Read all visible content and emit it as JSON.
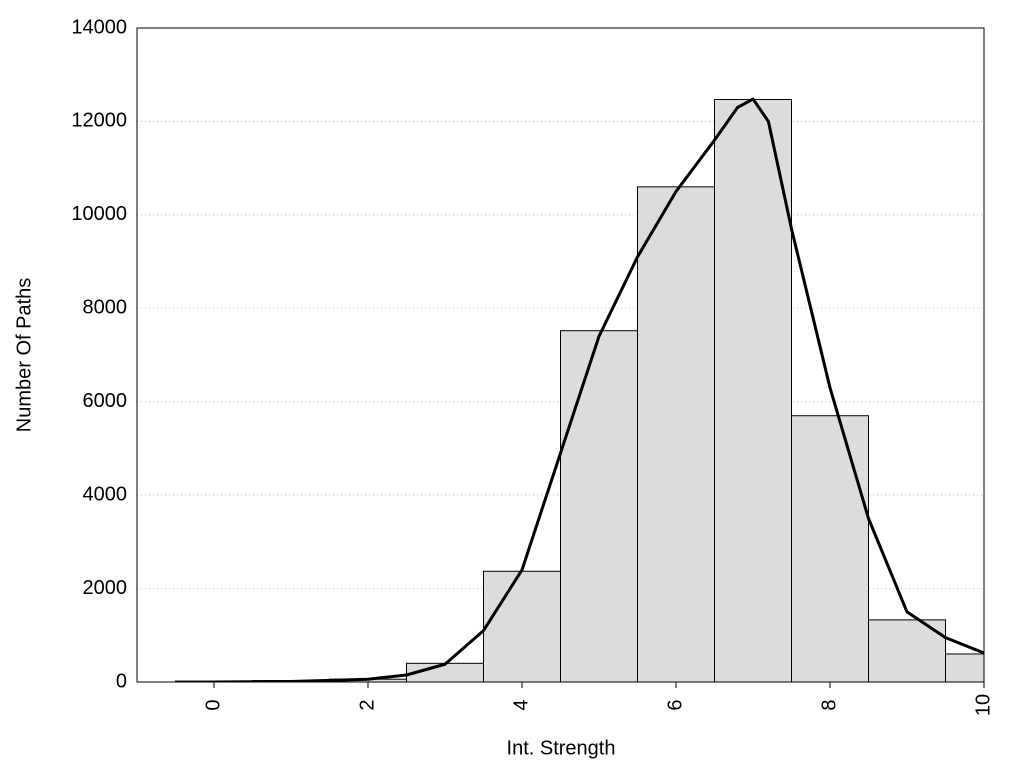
{
  "chart_data": {
    "type": "histogram",
    "xlabel": "Int. Strength",
    "ylabel": "Number Of Paths",
    "bins": [
      -0.5,
      0.5,
      1.5,
      2.5,
      3.5,
      4.5,
      5.5,
      6.5,
      7.5,
      8.5,
      9.5,
      10.5
    ],
    "values": [
      20,
      30,
      60,
      400,
      2370,
      7520,
      10600,
      12470,
      5700,
      1330,
      600
    ],
    "color": "#dcdcdc",
    "curve": {
      "color": "#000000",
      "x": [
        0,
        1,
        2,
        2.5,
        3,
        3.5,
        4,
        4.5,
        5,
        5.5,
        6,
        6.5,
        6.8,
        7,
        7.2,
        7.5,
        8,
        8.5,
        9,
        9.5,
        10
      ],
      "values": [
        0,
        10,
        60,
        150,
        380,
        1100,
        2400,
        4900,
        7400,
        9100,
        10500,
        11600,
        12300,
        12480,
        12000,
        9700,
        6300,
        3500,
        1500,
        950,
        620
      ]
    },
    "xlim": [
      -1,
      10
    ],
    "ylim": [
      0,
      14000
    ],
    "xticks": [
      0,
      2,
      4,
      6,
      8,
      10
    ],
    "yticks": [
      0,
      2000,
      4000,
      6000,
      8000,
      10000,
      12000,
      14000
    ],
    "grid": true
  }
}
